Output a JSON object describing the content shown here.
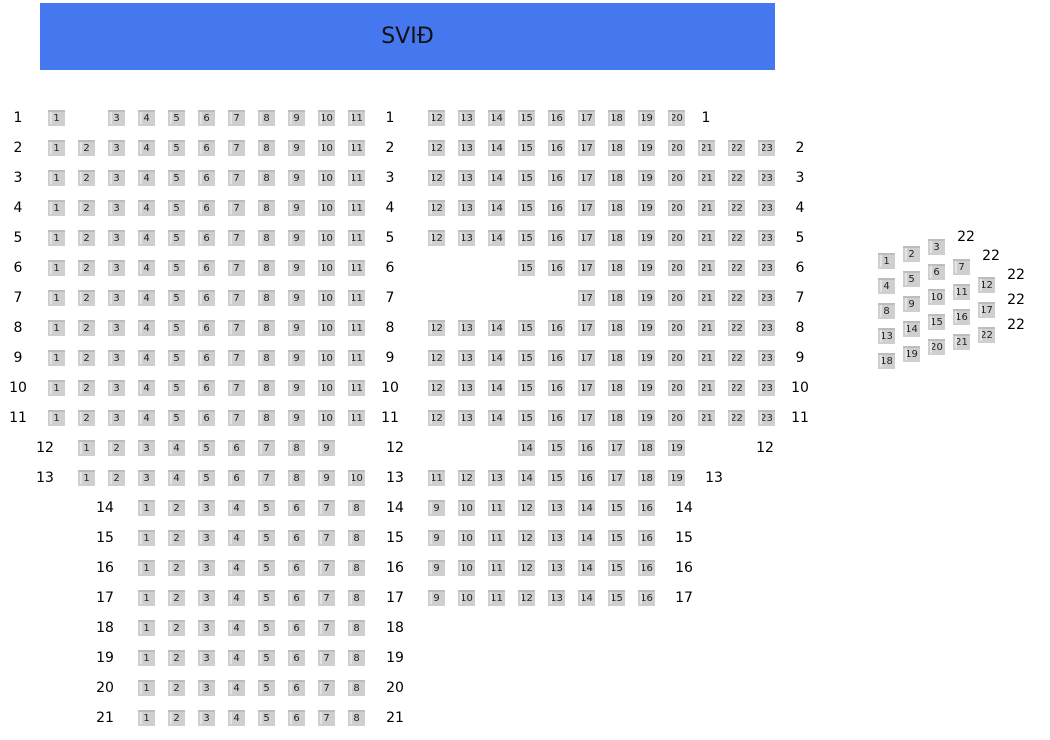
{
  "stage": {
    "label": "SVIÐ",
    "color": "#4577ee"
  },
  "seat_color": "#cfcfcf",
  "rows": [
    {
      "label": "1",
      "left": [
        1,
        3,
        4,
        5,
        6,
        7,
        8,
        9,
        10,
        11
      ],
      "right": [
        12,
        13,
        14,
        15,
        16,
        17,
        18,
        19,
        20
      ]
    },
    {
      "label": "2",
      "left": [
        1,
        2,
        3,
        4,
        5,
        6,
        7,
        8,
        9,
        10,
        11
      ],
      "right": [
        12,
        13,
        14,
        15,
        16,
        17,
        18,
        19,
        20,
        21,
        22,
        23
      ]
    },
    {
      "label": "3",
      "left": [
        1,
        2,
        3,
        4,
        5,
        6,
        7,
        8,
        9,
        10,
        11
      ],
      "right": [
        12,
        13,
        14,
        15,
        16,
        17,
        18,
        19,
        20,
        21,
        22,
        23
      ]
    },
    {
      "label": "4",
      "left": [
        1,
        2,
        3,
        4,
        5,
        6,
        7,
        8,
        9,
        10,
        11
      ],
      "right": [
        12,
        13,
        14,
        15,
        16,
        17,
        18,
        19,
        20,
        21,
        22,
        23
      ]
    },
    {
      "label": "5",
      "left": [
        1,
        2,
        3,
        4,
        5,
        6,
        7,
        8,
        9,
        10,
        11
      ],
      "right": [
        12,
        13,
        14,
        15,
        16,
        17,
        18,
        19,
        20,
        21,
        22,
        23
      ]
    },
    {
      "label": "6",
      "left": [
        1,
        2,
        3,
        4,
        5,
        6,
        7,
        8,
        9,
        10,
        11
      ],
      "right": [
        15,
        16,
        17,
        18,
        19,
        20,
        21,
        22,
        23
      ]
    },
    {
      "label": "7",
      "left": [
        1,
        2,
        3,
        4,
        5,
        6,
        7,
        8,
        9,
        10,
        11
      ],
      "right": [
        17,
        18,
        19,
        20,
        21,
        22,
        23
      ]
    },
    {
      "label": "8",
      "left": [
        1,
        2,
        3,
        4,
        5,
        6,
        7,
        8,
        9,
        10,
        11
      ],
      "right": [
        12,
        13,
        14,
        15,
        16,
        17,
        18,
        19,
        20,
        21,
        22,
        23
      ]
    },
    {
      "label": "9",
      "left": [
        1,
        2,
        3,
        4,
        5,
        6,
        7,
        8,
        9,
        10,
        11
      ],
      "right": [
        12,
        13,
        14,
        15,
        16,
        17,
        18,
        19,
        20,
        21,
        22,
        23
      ]
    },
    {
      "label": "10",
      "left": [
        1,
        2,
        3,
        4,
        5,
        6,
        7,
        8,
        9,
        10,
        11
      ],
      "right": [
        12,
        13,
        14,
        15,
        16,
        17,
        18,
        19,
        20,
        21,
        22,
        23
      ]
    },
    {
      "label": "11",
      "left": [
        1,
        2,
        3,
        4,
        5,
        6,
        7,
        8,
        9,
        10,
        11
      ],
      "right": [
        12,
        13,
        14,
        15,
        16,
        17,
        18,
        19,
        20,
        21,
        22,
        23
      ]
    },
    {
      "label": "12",
      "left": [
        1,
        2,
        3,
        4,
        5,
        6,
        7,
        8,
        9
      ],
      "right": [
        14,
        15,
        16,
        17,
        18,
        19
      ]
    },
    {
      "label": "13",
      "left": [
        1,
        2,
        3,
        4,
        5,
        6,
        7,
        8,
        9,
        10
      ],
      "right": [
        11,
        12,
        13,
        14,
        15,
        16,
        17,
        18,
        19
      ]
    },
    {
      "label": "14",
      "left": [
        1,
        2,
        3,
        4,
        5,
        6,
        7,
        8
      ],
      "right": [
        9,
        10,
        11,
        12,
        13,
        14,
        15,
        16
      ]
    },
    {
      "label": "15",
      "left": [
        1,
        2,
        3,
        4,
        5,
        6,
        7,
        8
      ],
      "right": [
        9,
        10,
        11,
        12,
        13,
        14,
        15,
        16
      ]
    },
    {
      "label": "16",
      "left": [
        1,
        2,
        3,
        4,
        5,
        6,
        7,
        8
      ],
      "right": [
        9,
        10,
        11,
        12,
        13,
        14,
        15,
        16
      ]
    },
    {
      "label": "17",
      "left": [
        1,
        2,
        3,
        4,
        5,
        6,
        7,
        8
      ],
      "right": [
        9,
        10,
        11,
        12,
        13,
        14,
        15,
        16
      ]
    },
    {
      "label": "18",
      "left": [
        1,
        2,
        3,
        4,
        5,
        6,
        7,
        8
      ],
      "right": []
    },
    {
      "label": "19",
      "left": [
        1,
        2,
        3,
        4,
        5,
        6,
        7,
        8
      ],
      "right": []
    },
    {
      "label": "20",
      "left": [
        1,
        2,
        3,
        4,
        5,
        6,
        7,
        8
      ],
      "right": []
    },
    {
      "label": "21",
      "left": [
        1,
        2,
        3,
        4,
        5,
        6,
        7,
        8
      ],
      "right": []
    }
  ],
  "side_block": {
    "seats": [
      1,
      2,
      3,
      4,
      5,
      6,
      7,
      8,
      9,
      10,
      11,
      12,
      13,
      14,
      15,
      16,
      17,
      18,
      19,
      20,
      21,
      22
    ],
    "row_labels": [
      "22",
      "22",
      "22",
      "22",
      "22"
    ]
  }
}
